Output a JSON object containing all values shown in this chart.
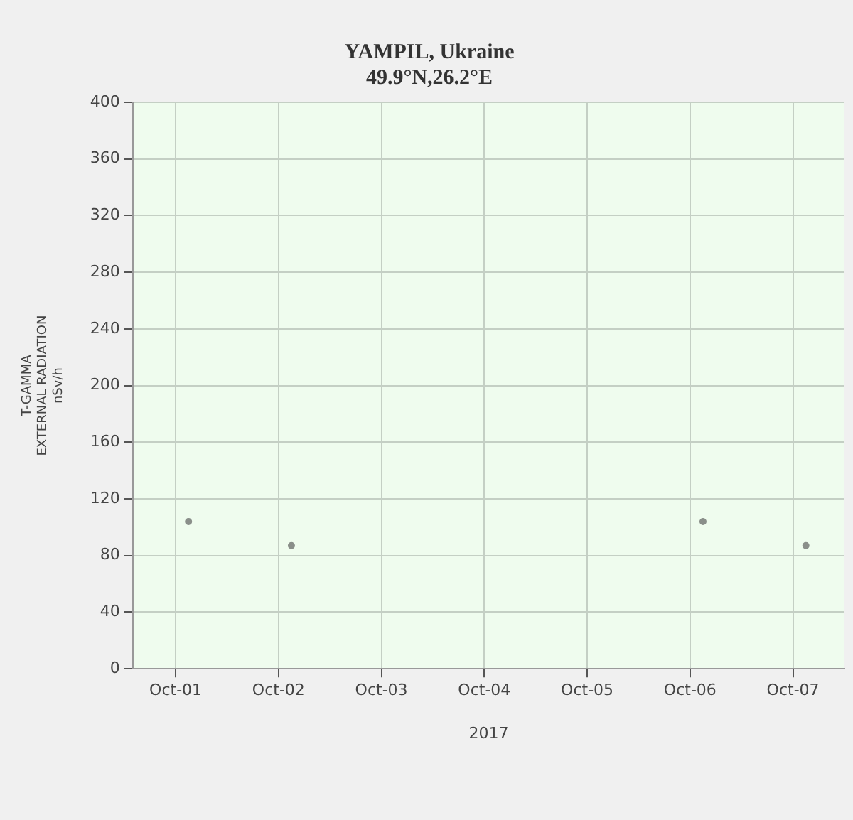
{
  "chart_data": {
    "type": "scatter",
    "title": "YAMPIL, Ukraine",
    "subtitle": "49.9°N,26.2°E",
    "xlabel": "2017",
    "ylabel": "T-GAMMA\nEXTERNAL RADIATION\nnSv/h",
    "x": [
      "2017-10-01T03:00",
      "2017-10-02T03:00",
      "2017-10-06T03:00",
      "2017-10-07T03:00"
    ],
    "series": [
      {
        "color": "#8a8f8a",
        "values": [
          104,
          87,
          104,
          87
        ]
      }
    ],
    "marker": "circle",
    "grid": true,
    "legend": false,
    "ylim": [
      0,
      400
    ],
    "yticks": [
      0,
      40,
      80,
      120,
      160,
      200,
      240,
      280,
      320,
      360,
      400
    ],
    "xlim": [
      "2017-09-30T14:00",
      "2017-10-07T12:00"
    ],
    "xticks": [
      {
        "value": "2017-10-01",
        "label": "Oct-01"
      },
      {
        "value": "2017-10-02",
        "label": "Oct-02"
      },
      {
        "value": "2017-10-03",
        "label": "Oct-03"
      },
      {
        "value": "2017-10-04",
        "label": "Oct-04"
      },
      {
        "value": "2017-10-05",
        "label": "Oct-05"
      },
      {
        "value": "2017-10-06",
        "label": "Oct-06"
      },
      {
        "value": "2017-10-07",
        "label": "Oct-07"
      }
    ]
  }
}
